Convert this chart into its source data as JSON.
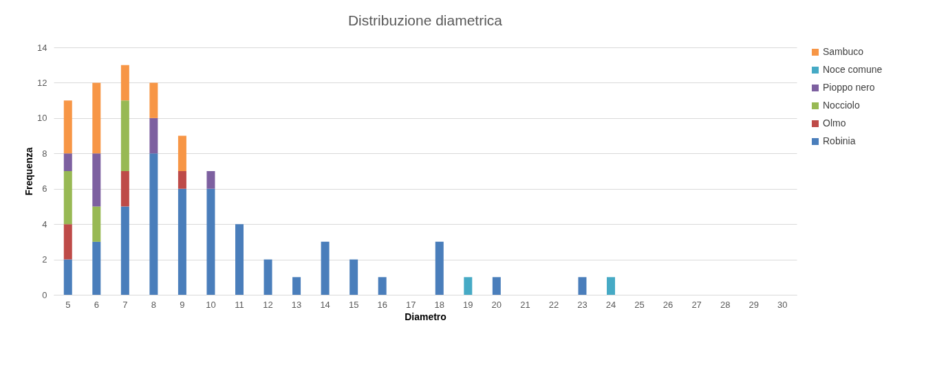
{
  "chart_data": {
    "type": "bar",
    "title": "Distribuzione diametrica",
    "xlabel": "Diametro",
    "ylabel": "Frequenza",
    "categories": [
      "5",
      "6",
      "7",
      "8",
      "9",
      "10",
      "11",
      "12",
      "13",
      "14",
      "15",
      "16",
      "17",
      "18",
      "19",
      "20",
      "21",
      "22",
      "23",
      "24",
      "25",
      "26",
      "27",
      "28",
      "29",
      "30"
    ],
    "stacked": true,
    "ylim": [
      0,
      14
    ],
    "yticks": [
      0,
      2,
      4,
      6,
      8,
      10,
      12,
      14
    ],
    "grid": "y",
    "legend": "right",
    "series": [
      {
        "name": "Robinia",
        "color": "#4a7ebb",
        "values": [
          2,
          3,
          5,
          8,
          6,
          6,
          4,
          2,
          1,
          3,
          2,
          1,
          null,
          3,
          null,
          1,
          null,
          null,
          1,
          null,
          null,
          null,
          null,
          null,
          null,
          null
        ]
      },
      {
        "name": "Olmo",
        "color": "#be4b48",
        "values": [
          2,
          null,
          2,
          null,
          1,
          null,
          null,
          null,
          null,
          null,
          null,
          null,
          null,
          null,
          null,
          null,
          null,
          null,
          null,
          null,
          null,
          null,
          null,
          null,
          null,
          null
        ]
      },
      {
        "name": "Nocciolo",
        "color": "#98b954",
        "values": [
          3,
          2,
          4,
          null,
          null,
          null,
          null,
          null,
          null,
          null,
          null,
          null,
          null,
          null,
          null,
          null,
          null,
          null,
          null,
          null,
          null,
          null,
          null,
          null,
          null,
          null
        ]
      },
      {
        "name": "Pioppo nero",
        "color": "#7d60a0",
        "values": [
          1,
          3,
          null,
          2,
          null,
          1,
          null,
          null,
          null,
          null,
          null,
          null,
          null,
          null,
          null,
          null,
          null,
          null,
          null,
          null,
          null,
          null,
          null,
          null,
          null,
          null
        ]
      },
      {
        "name": "Noce comune",
        "color": "#46aac5",
        "values": [
          null,
          null,
          null,
          null,
          null,
          null,
          null,
          null,
          null,
          null,
          null,
          null,
          null,
          null,
          1,
          null,
          null,
          null,
          null,
          1,
          null,
          null,
          null,
          null,
          null,
          null
        ]
      },
      {
        "name": "Sambuco",
        "color": "#f79646",
        "values": [
          3,
          4,
          2,
          2,
          2,
          null,
          null,
          null,
          null,
          null,
          null,
          null,
          null,
          null,
          null,
          null,
          null,
          null,
          null,
          null,
          null,
          null,
          null,
          null,
          null,
          null
        ]
      }
    ]
  }
}
